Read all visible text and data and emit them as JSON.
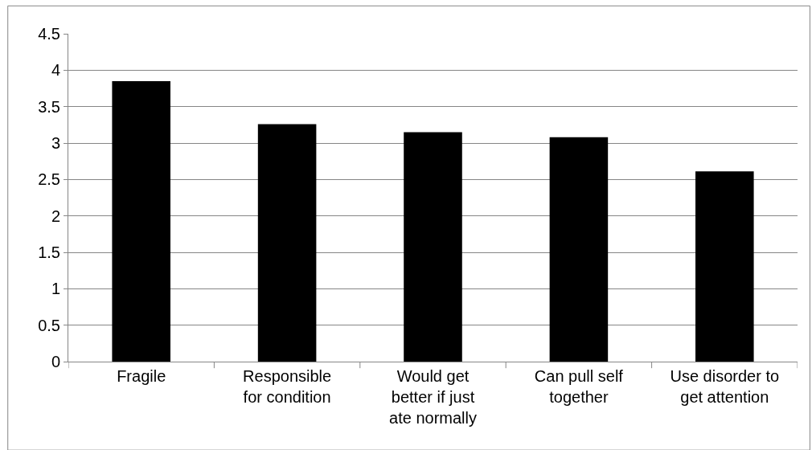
{
  "chart_data": {
    "type": "bar",
    "categories": [
      "Fragile",
      "Responsible\nfor condition",
      "Would get\nbetter if just\nate normally",
      "Can pull self\ntogether",
      "Use disorder to\nget attention"
    ],
    "values": [
      3.85,
      3.26,
      3.15,
      3.08,
      2.61
    ],
    "color": "#000000",
    "ylim": [
      0,
      4.5
    ],
    "yticks": [
      0,
      0.5,
      1,
      1.5,
      2,
      2.5,
      3,
      3.5,
      4,
      4.5
    ],
    "grid": "y",
    "legend": false
  }
}
